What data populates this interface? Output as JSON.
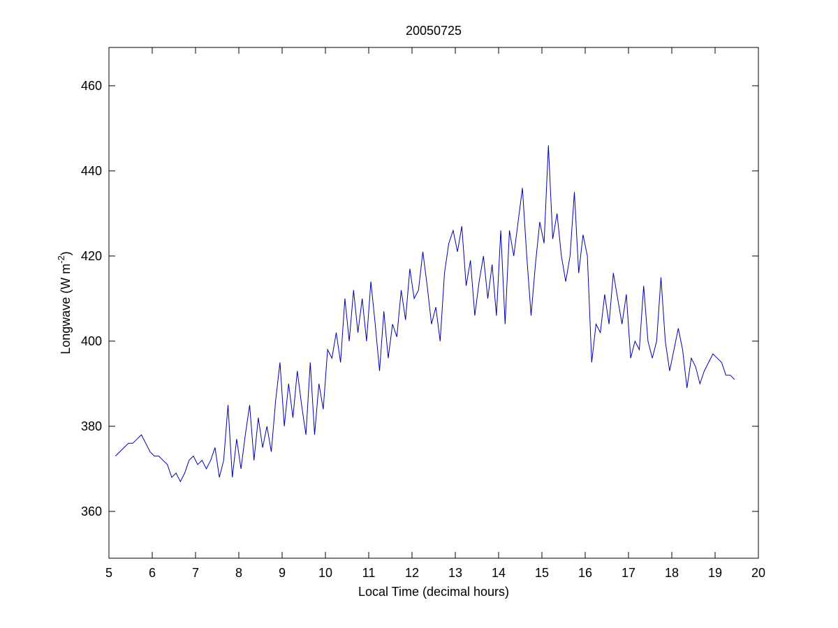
{
  "chart_data": {
    "type": "line",
    "title": "20050725",
    "x_label": "Local Time (decimal hours)",
    "y_label": {
      "text": "Longwave (W m",
      "superscript": "-2",
      "suffix": ")"
    },
    "xlim": [
      5,
      20
    ],
    "xticks": [
      5,
      6,
      7,
      8,
      9,
      10,
      11,
      12,
      13,
      14,
      15,
      16,
      17,
      18,
      19,
      20
    ],
    "ylim": [
      349,
      469
    ],
    "yticks": [
      360,
      380,
      400,
      420,
      440,
      460
    ],
    "grid": false,
    "series": [
      {
        "color": "#0000aa",
        "x": [
          5.15,
          5.25,
          5.35,
          5.45,
          5.55,
          5.65,
          5.75,
          5.85,
          5.95,
          6.05,
          6.15,
          6.25,
          6.35,
          6.45,
          6.55,
          6.65,
          6.75,
          6.85,
          6.95,
          7.05,
          7.15,
          7.25,
          7.35,
          7.45,
          7.55,
          7.65,
          7.75,
          7.85,
          7.95,
          8.05,
          8.15,
          8.25,
          8.35,
          8.45,
          8.55,
          8.65,
          8.75,
          8.85,
          8.95,
          9.05,
          9.15,
          9.25,
          9.35,
          9.45,
          9.55,
          9.65,
          9.75,
          9.85,
          9.95,
          10.05,
          10.15,
          10.25,
          10.35,
          10.45,
          10.55,
          10.65,
          10.75,
          10.85,
          10.95,
          11.05,
          11.15,
          11.25,
          11.35,
          11.45,
          11.55,
          11.65,
          11.75,
          11.85,
          11.95,
          12.05,
          12.15,
          12.25,
          12.35,
          12.45,
          12.55,
          12.65,
          12.75,
          12.85,
          12.95,
          13.05,
          13.15,
          13.25,
          13.35,
          13.45,
          13.55,
          13.65,
          13.75,
          13.85,
          13.95,
          14.05,
          14.15,
          14.25,
          14.35,
          14.45,
          14.55,
          14.65,
          14.75,
          14.85,
          14.95,
          15.05,
          15.15,
          15.25,
          15.35,
          15.45,
          15.55,
          15.65,
          15.75,
          15.85,
          15.95,
          16.05,
          16.15,
          16.25,
          16.35,
          16.45,
          16.55,
          16.65,
          16.75,
          16.85,
          16.95,
          17.05,
          17.15,
          17.25,
          17.35,
          17.45,
          17.55,
          17.65,
          17.75,
          17.85,
          17.95,
          18.05,
          18.15,
          18.25,
          18.35,
          18.45,
          18.55,
          18.65,
          18.75,
          18.85,
          18.95,
          19.05,
          19.15,
          19.25,
          19.35,
          19.45
        ],
        "values": [
          373,
          374,
          375,
          376,
          376,
          377,
          378,
          376,
          374,
          373,
          373,
          372,
          371,
          368,
          369,
          367,
          369,
          372,
          373,
          371,
          372,
          370,
          372,
          375,
          368,
          372,
          385,
          368,
          377,
          370,
          378,
          385,
          372,
          382,
          375,
          380,
          374,
          386,
          395,
          380,
          390,
          382,
          393,
          385,
          378,
          395,
          378,
          390,
          384,
          398,
          396,
          402,
          395,
          410,
          400,
          412,
          402,
          410,
          400,
          414,
          404,
          393,
          407,
          396,
          404,
          401,
          412,
          405,
          417,
          410,
          412,
          421,
          413,
          404,
          408,
          400,
          416,
          423,
          426,
          421,
          427,
          413,
          419,
          406,
          414,
          420,
          410,
          418,
          406,
          426,
          404,
          426,
          420,
          428,
          436,
          420,
          406,
          418,
          428,
          423,
          446,
          424,
          430,
          420,
          414,
          420,
          435,
          416,
          425,
          420,
          395,
          404,
          402,
          411,
          404,
          416,
          410,
          404,
          411,
          396,
          400,
          398,
          413,
          400,
          396,
          400,
          415,
          400,
          393,
          398,
          403,
          398,
          389,
          396,
          394,
          390,
          393,
          395,
          397,
          396,
          395,
          392,
          392,
          391
        ]
      }
    ]
  }
}
